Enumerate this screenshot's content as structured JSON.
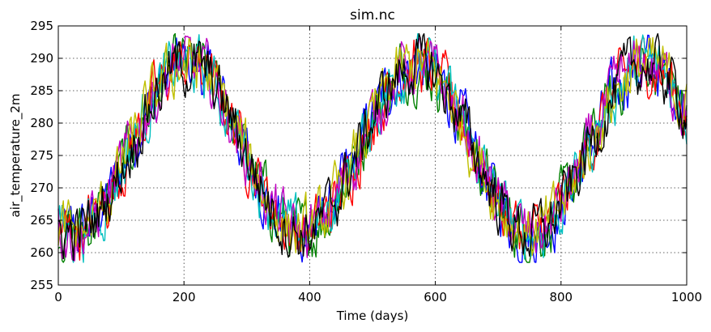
{
  "chart_data": {
    "type": "line",
    "title": "sim.nc",
    "xlabel": "Time (days)",
    "ylabel": "air_temperature_2m",
    "xlim": [
      0,
      1000
    ],
    "ylim": [
      255,
      295
    ],
    "xticks": [
      0,
      200,
      400,
      600,
      800,
      1000
    ],
    "yticks": [
      255,
      260,
      265,
      270,
      275,
      280,
      285,
      290,
      295
    ],
    "grid": true,
    "period_days": 365,
    "mean": 276,
    "amplitude": 13,
    "phase_peak_day": 205,
    "series": [
      {
        "color": "#0000ff"
      },
      {
        "color": "#008000"
      },
      {
        "color": "#ff0000"
      },
      {
        "color": "#00bfbf"
      },
      {
        "color": "#bf00bf"
      },
      {
        "color": "#bfbf00"
      },
      {
        "color": "#000000"
      }
    ]
  }
}
